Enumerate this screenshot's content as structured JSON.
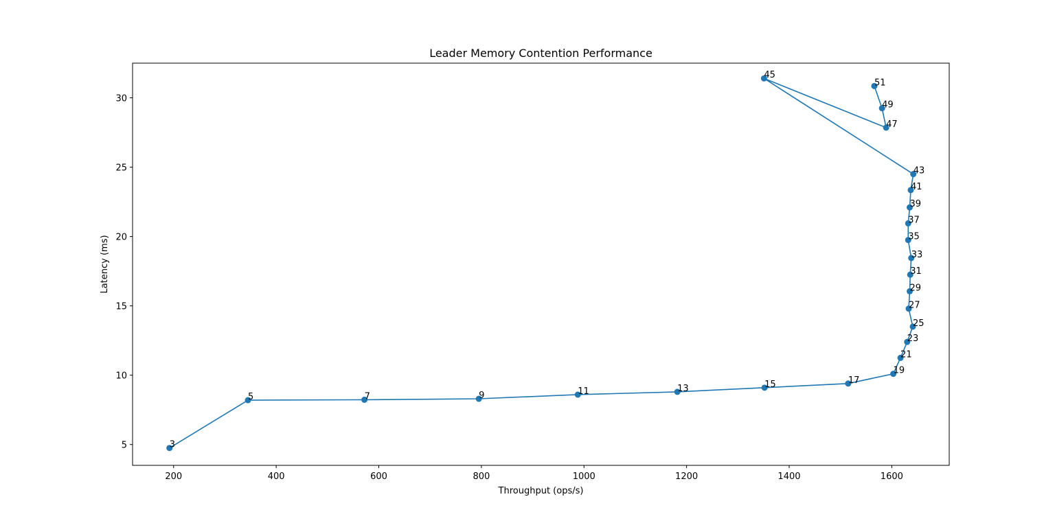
{
  "chart_data": {
    "type": "line",
    "title": "Leader Memory Contention Performance",
    "xlabel": "Throughput (ops/s)",
    "ylabel": "Latency (ms)",
    "xlim": [
      120,
      1712
    ],
    "ylim": [
      3.5,
      32.5
    ],
    "xticks": [
      200,
      400,
      600,
      800,
      1000,
      1200,
      1400,
      1600
    ],
    "yticks": [
      5,
      10,
      15,
      20,
      25,
      30
    ],
    "grid": false,
    "line_color": "#1f77b4",
    "points": [
      {
        "label": "3",
        "x": 192,
        "y": 4.75
      },
      {
        "label": "5",
        "x": 345,
        "y": 8.2
      },
      {
        "label": "7",
        "x": 572,
        "y": 8.23
      },
      {
        "label": "9",
        "x": 795,
        "y": 8.3
      },
      {
        "label": "11",
        "x": 988,
        "y": 8.6
      },
      {
        "label": "13",
        "x": 1182,
        "y": 8.8
      },
      {
        "label": "15",
        "x": 1352,
        "y": 9.1
      },
      {
        "label": "17",
        "x": 1515,
        "y": 9.4
      },
      {
        "label": "19",
        "x": 1603,
        "y": 10.1
      },
      {
        "label": "21",
        "x": 1617,
        "y": 11.25
      },
      {
        "label": "23",
        "x": 1630,
        "y": 12.4
      },
      {
        "label": "25",
        "x": 1641,
        "y": 13.5
      },
      {
        "label": "27",
        "x": 1633,
        "y": 14.8
      },
      {
        "label": "29",
        "x": 1635,
        "y": 16.05
      },
      {
        "label": "31",
        "x": 1636,
        "y": 17.25
      },
      {
        "label": "33",
        "x": 1638,
        "y": 18.45
      },
      {
        "label": "35",
        "x": 1632,
        "y": 19.75
      },
      {
        "label": "37",
        "x": 1632,
        "y": 20.95
      },
      {
        "label": "39",
        "x": 1635,
        "y": 22.1
      },
      {
        "label": "41",
        "x": 1637,
        "y": 23.35
      },
      {
        "label": "43",
        "x": 1642,
        "y": 24.5
      },
      {
        "label": "45",
        "x": 1351,
        "y": 31.4
      },
      {
        "label": "47",
        "x": 1589,
        "y": 27.85
      },
      {
        "label": "49",
        "x": 1581,
        "y": 29.25
      },
      {
        "label": "51",
        "x": 1566,
        "y": 30.85
      }
    ]
  }
}
